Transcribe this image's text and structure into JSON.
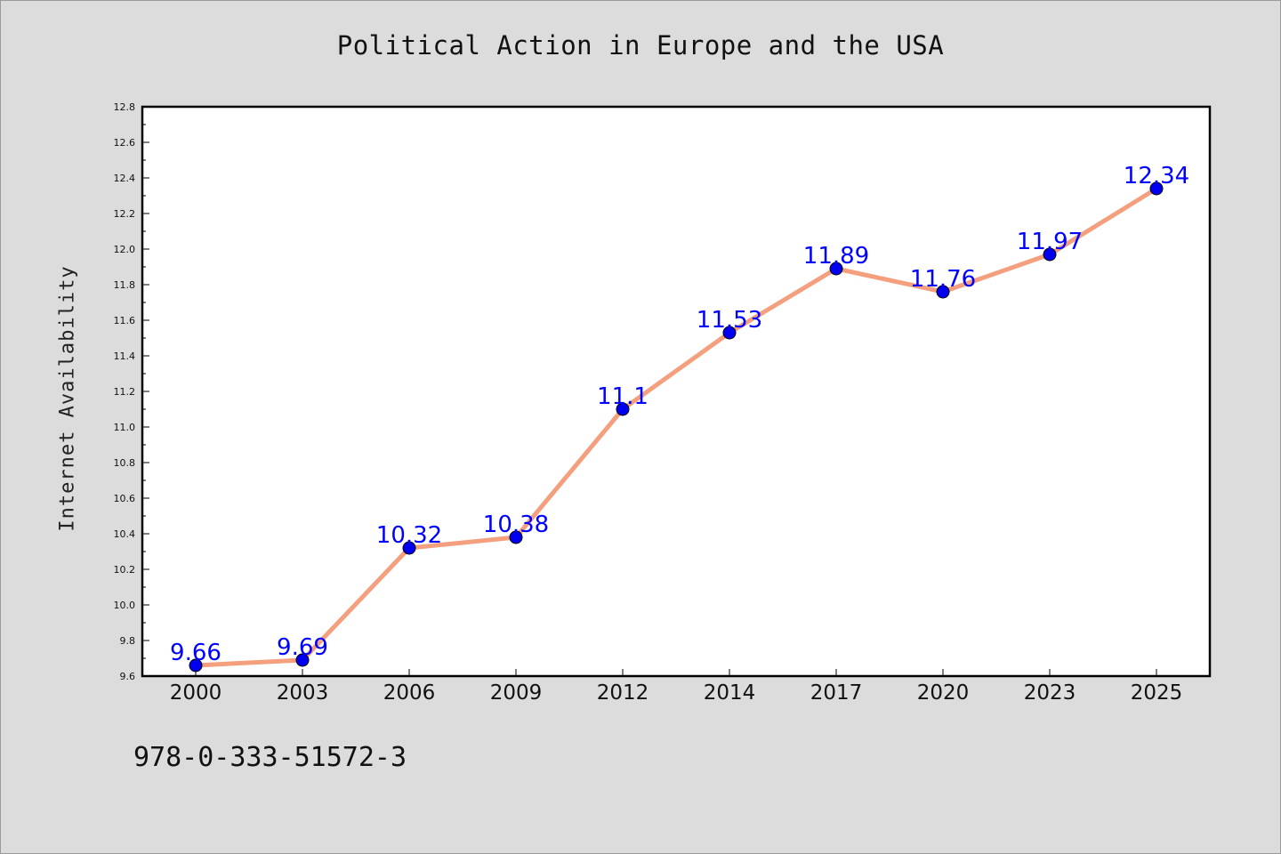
{
  "chart_data": {
    "type": "line",
    "title": "Political Action in Europe and the USA",
    "xlabel": "",
    "ylabel": "Internet Availability",
    "categories": [
      "2000",
      "2003",
      "2006",
      "2009",
      "2012",
      "2014",
      "2017",
      "2020",
      "2023",
      "2025"
    ],
    "values": [
      9.66,
      9.69,
      10.32,
      10.38,
      11.1,
      11.53,
      11.89,
      11.76,
      11.97,
      12.34
    ],
    "data_labels": [
      "9.66",
      "9.69",
      "10.32",
      "10.38",
      "11.1",
      "11.53",
      "11.89",
      "11.76",
      "11.97",
      "12.34"
    ],
    "ylim": [
      9.6,
      12.8
    ],
    "yticks": [
      "9.6",
      "9.8",
      "10.0",
      "10.2",
      "10.4",
      "10.6",
      "10.8",
      "11.0",
      "11.2",
      "11.4",
      "11.6",
      "11.8",
      "12.0",
      "12.2",
      "12.4",
      "12.6",
      "12.8"
    ],
    "grid": false,
    "line_color": "#f4a07e",
    "marker_color": "#0000ee",
    "label_color": "#0000ff"
  },
  "footnote": "978-0-333-51572-3"
}
